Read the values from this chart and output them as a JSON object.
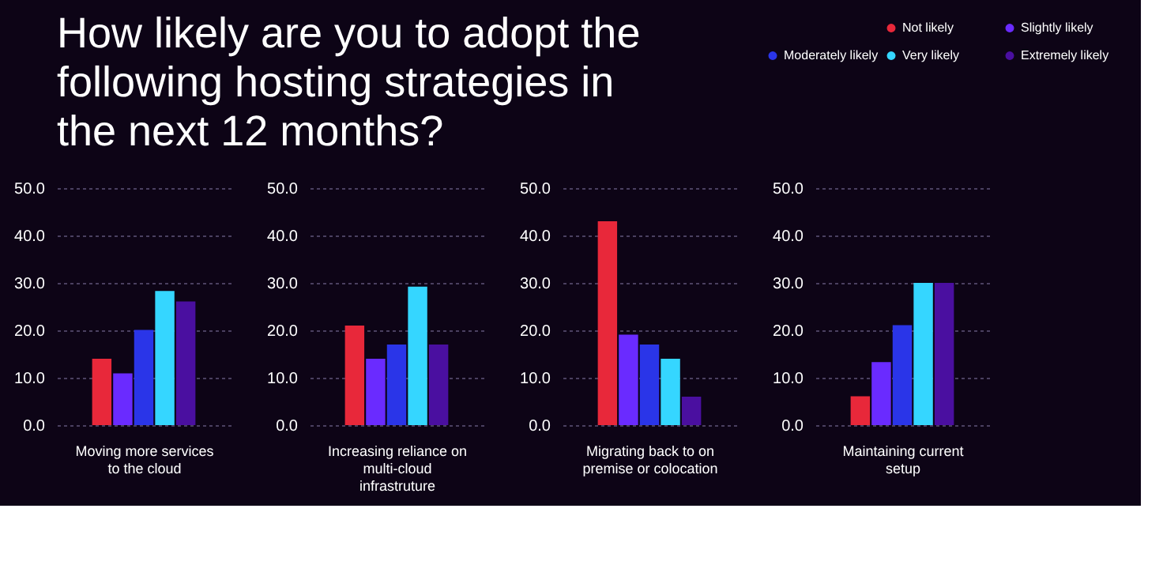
{
  "chart_data": [
    {
      "type": "bar",
      "title": "How likely are you to adopt the following hosting strategies in the next 12 months?",
      "categories": [
        null
      ],
      "xlabel": "Moving more services to the cloud",
      "ylim": [
        0,
        50
      ],
      "yticks": [
        {
          "value": 0,
          "label": "0.0"
        },
        {
          "value": 10,
          "label": "10.0"
        },
        {
          "value": 20,
          "label": "20.0"
        },
        {
          "value": 30,
          "label": "30.0"
        },
        {
          "value": 40,
          "label": "40.0"
        },
        {
          "value": 50,
          "label": "50.0"
        }
      ],
      "grid": "y",
      "legend": "top right",
      "series": [
        {
          "name": "Not likely",
          "color": "#e8283a",
          "values": [
            14.0
          ]
        },
        {
          "name": "Slightly likely",
          "color": "#6a2bff",
          "values": [
            10.9
          ]
        },
        {
          "name": "Moderately likely",
          "color": "#2a35e8",
          "values": [
            20.1
          ]
        },
        {
          "name": "Very likely",
          "color": "#35d6ff",
          "values": [
            28.3
          ]
        },
        {
          "name": "Extremely likely",
          "color": "#4a0fa0",
          "values": [
            26.1
          ]
        }
      ]
    },
    {
      "type": "bar",
      "categories": [
        null
      ],
      "xlabel": "Increasing reliance on multi-cloud infrastruture",
      "ylim": [
        0,
        50
      ],
      "yticks": [
        {
          "value": 0,
          "label": "0.0"
        },
        {
          "value": 10,
          "label": "10.0"
        },
        {
          "value": 20,
          "label": "20.0"
        },
        {
          "value": 30,
          "label": "30.0"
        },
        {
          "value": 40,
          "label": "40.0"
        },
        {
          "value": 50,
          "label": "50.0"
        }
      ],
      "grid": "y",
      "legend": false,
      "series": [
        {
          "color": "#e8283a",
          "values": [
            21.0
          ]
        },
        {
          "color": "#6a2bff",
          "values": [
            14.0
          ]
        },
        {
          "color": "#2a35e8",
          "values": [
            17.0
          ]
        },
        {
          "color": "#35d6ff",
          "values": [
            29.2
          ]
        },
        {
          "color": "#4a0fa0",
          "values": [
            17.0
          ]
        }
      ]
    },
    {
      "type": "bar",
      "categories": [
        null
      ],
      "xlabel": "Migrating back to on premise or colocation",
      "ylim": [
        0,
        50
      ],
      "yticks": [
        {
          "value": 0,
          "label": "0.0"
        },
        {
          "value": 10,
          "label": "10.0"
        },
        {
          "value": 20,
          "label": "20.0"
        },
        {
          "value": 30,
          "label": "30.0"
        },
        {
          "value": 40,
          "label": "40.0"
        },
        {
          "value": 50,
          "label": "50.0"
        }
      ],
      "grid": "y",
      "legend": false,
      "series": [
        {
          "color": "#e8283a",
          "values": [
            43.0
          ]
        },
        {
          "color": "#6a2bff",
          "values": [
            19.1
          ]
        },
        {
          "color": "#2a35e8",
          "values": [
            17.0
          ]
        },
        {
          "color": "#35d6ff",
          "values": [
            14.0
          ]
        },
        {
          "color": "#4a0fa0",
          "values": [
            6.0
          ]
        }
      ]
    },
    {
      "type": "bar",
      "categories": [
        null
      ],
      "xlabel": "Maintaining current setup",
      "ylim": [
        0,
        50
      ],
      "yticks": [
        {
          "value": 0,
          "label": "0.0"
        },
        {
          "value": 10,
          "label": "10.0"
        },
        {
          "value": 20,
          "label": "20.0"
        },
        {
          "value": 30,
          "label": "30.0"
        },
        {
          "value": 40,
          "label": "40.0"
        },
        {
          "value": 50,
          "label": "50.0"
        }
      ],
      "grid": "y",
      "series": [
        {
          "color": "#e8283a",
          "values": [
            6.1
          ]
        },
        {
          "color": "#6a2bff",
          "values": [
            13.3
          ]
        },
        {
          "color": "#2a35e8",
          "values": [
            21.1
          ]
        },
        {
          "color": "#35d6ff",
          "values": [
            30.0
          ]
        },
        {
          "color": "#4a0fa0",
          "values": [
            30.0
          ]
        }
      ]
    }
  ]
}
